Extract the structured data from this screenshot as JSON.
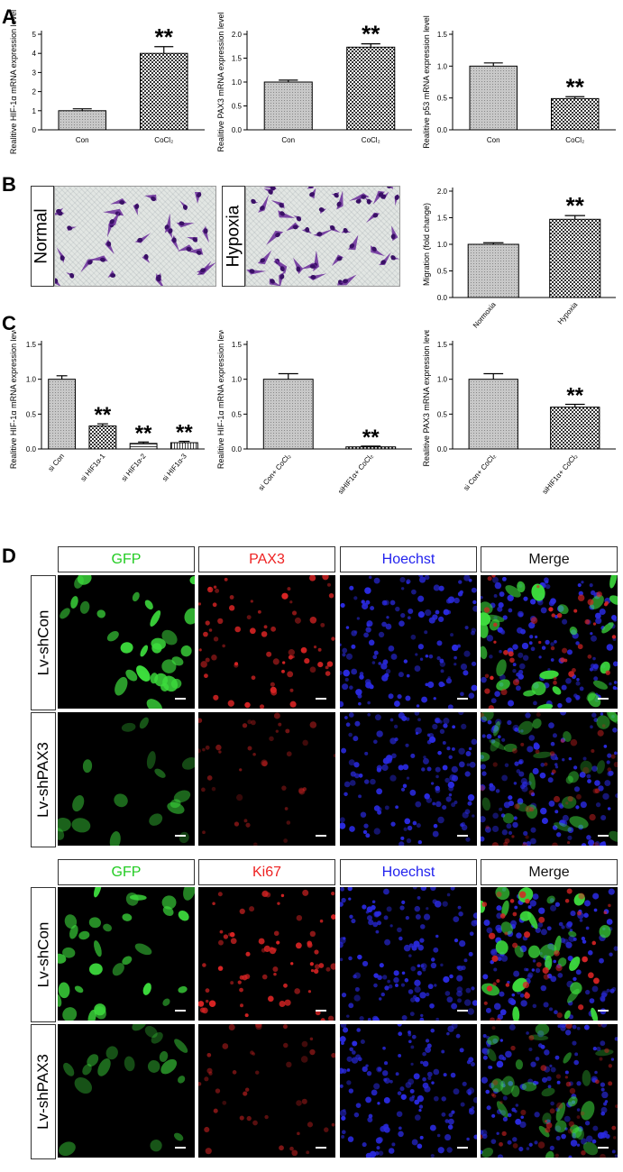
{
  "panels": {
    "a": "A",
    "b": "B",
    "c": "C",
    "d": "D"
  },
  "significance": "**",
  "charts_a": [
    {
      "ylabel": "Realitive HIF-1α  mRNA expression level",
      "ylim": [
        0,
        5
      ],
      "ticks": [
        "0",
        "1",
        "2",
        "3",
        "4",
        "5"
      ],
      "categories": [
        "Con",
        "CoCl₂"
      ],
      "values": [
        1.0,
        4.0
      ],
      "errors": [
        0.1,
        0.35
      ],
      "sig": [
        false,
        true
      ]
    },
    {
      "ylabel": "Realitive PAX3 mRNA expression level",
      "ylim": [
        0,
        2.0
      ],
      "ticks": [
        "0.0",
        "0.5",
        "1.0",
        "1.5",
        "2.0"
      ],
      "categories": [
        "Con",
        "CoCl₂"
      ],
      "values": [
        1.0,
        1.73
      ],
      "errors": [
        0.04,
        0.07
      ],
      "sig": [
        false,
        true
      ]
    },
    {
      "ylabel": "Realitive p53 mRNA expression level",
      "ylim": [
        0,
        1.5
      ],
      "ticks": [
        "0.0",
        "0.5",
        "1.0",
        "1.5"
      ],
      "categories": [
        "Con",
        "CoCl₂"
      ],
      "values": [
        1.0,
        0.49
      ],
      "errors": [
        0.05,
        0.03
      ],
      "sig": [
        false,
        true
      ]
    }
  ],
  "micro_b": {
    "normal": "Normal",
    "hypoxia": "Hypoxia"
  },
  "chart_b": {
    "ylabel": "Migration (fold change)",
    "ylim": [
      0,
      2.0
    ],
    "ticks": [
      "0.0",
      "0.5",
      "1.0",
      "1.5",
      "2.0"
    ],
    "categories": [
      "Normoxia",
      "Hypoxia"
    ],
    "values": [
      1.0,
      1.47
    ],
    "errors": [
      0.03,
      0.07
    ],
    "sig": [
      false,
      true
    ]
  },
  "charts_c": [
    {
      "ylabel": "Realitive HIF-1α  mRNA expression level",
      "ylim": [
        0,
        1.5
      ],
      "ticks": [
        "0.0",
        "0.5",
        "1.0",
        "1.5"
      ],
      "categories": [
        "si Con",
        "si HIF1α-1",
        "si HIF1α-2",
        "si HIF1α-3"
      ],
      "values": [
        1.0,
        0.33,
        0.08,
        0.09
      ],
      "errors": [
        0.05,
        0.03,
        0.02,
        0.02
      ],
      "sig": [
        false,
        true,
        true,
        true
      ]
    },
    {
      "ylabel": "Realitive HIF-1α  mRNA expression level",
      "ylim": [
        0,
        1.5
      ],
      "ticks": [
        "0.0",
        "0.5",
        "1.0",
        "1.5"
      ],
      "categories": [
        "si Con+ CoCl₂",
        "siHIF1α+ CoCl₂"
      ],
      "values": [
        1.0,
        0.03
      ],
      "errors": [
        0.08,
        0.01
      ],
      "sig": [
        false,
        true
      ]
    },
    {
      "ylabel": "Realitive PAX3 mRNA expression level",
      "ylim": [
        0,
        1.5
      ],
      "ticks": [
        "0.0",
        "0.5",
        "1.0",
        "1.5"
      ],
      "categories": [
        "si Con+ CoCl₂",
        "siHIF1α+ CoCl₂"
      ],
      "values": [
        1.0,
        0.6
      ],
      "errors": [
        0.08,
        0.04
      ],
      "sig": [
        false,
        true
      ]
    }
  ],
  "panel_d": {
    "headers_top": [
      "GFP",
      "PAX3",
      "Hoechst",
      "Merge"
    ],
    "headers_bottom": [
      "GFP",
      "Ki67",
      "Hoechst",
      "Merge"
    ],
    "rows": [
      "Lv-shCon",
      "Lv-shPAX3"
    ],
    "header_colors": [
      "#22cc22",
      "#ee2222",
      "#2222ee",
      "#111111"
    ]
  }
}
